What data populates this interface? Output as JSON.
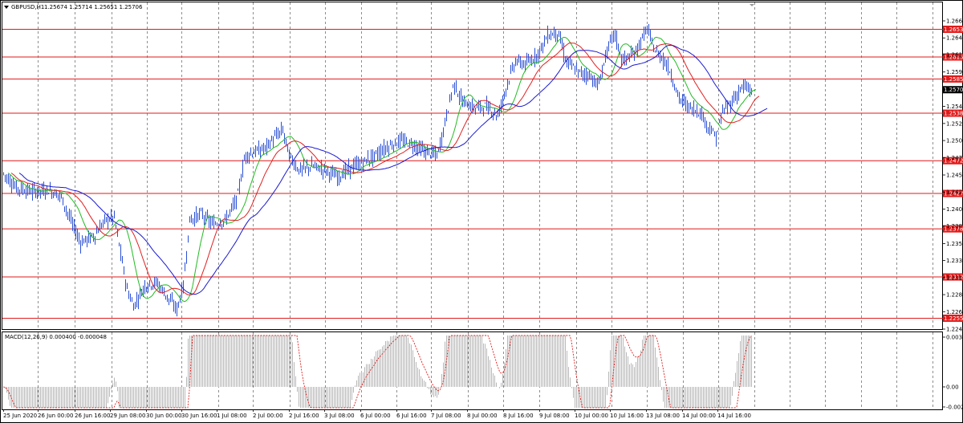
{
  "window": {
    "title": "GBPUSD,H1",
    "ohlc": "1.25674 1.25714 1.25651 1.25706",
    "menu_icon": "triangle-down-icon"
  },
  "main_axis": {
    "ticks": [
      "1.26655",
      "1.26420",
      "1.26190",
      "1.25950",
      "1.25715",
      "1.25475",
      "1.25240",
      "1.25005",
      "1.24770",
      "1.24530",
      "1.24295",
      "1.24060",
      "1.23825",
      "1.23585",
      "1.23350",
      "1.23115",
      "1.22880",
      "1.22645",
      "1.22405"
    ],
    "current_price": "1.25706"
  },
  "levels": [
    {
      "value": "1.26539"
    },
    {
      "value": "1.26157"
    },
    {
      "value": "1.25854"
    },
    {
      "value": "1.25382"
    },
    {
      "value": "1.24727"
    },
    {
      "value": "1.24275"
    },
    {
      "value": "1.23787"
    },
    {
      "value": "1.23124"
    },
    {
      "value": "1.22555"
    }
  ],
  "macd": {
    "label": "MACD(12,26,9) 0.000400 -0.000048",
    "ticks": [
      "0.003585",
      "0.00",
      "-0.00270"
    ]
  },
  "time_axis": [
    "25 Jun 2020",
    "26 Jun 00:00",
    "26 Jun 16:00",
    "29 Jun 08:00",
    "30 Jun 00:00",
    "30 Jun 16:00",
    "1 Jul 08:00",
    "2 Jul 00:00",
    "2 Jul 16:00",
    "3 Jul 08:00",
    "6 Jul 00:00",
    "6 Jul 16:00",
    "7 Jul 08:00",
    "8 Jul 00:00",
    "8 Jul 16:00",
    "9 Jul 08:00",
    "10 Jul 00:00",
    "10 Jul 16:00",
    "13 Jul 08:00",
    "14 Jul 00:00",
    "14 Jul 16:00"
  ],
  "colors": {
    "level_line": "#e11919",
    "level_tag": "#e11919",
    "candles": "#2a4fd6",
    "ma_fast": "#22bb22",
    "ma_mid": "#e02020",
    "ma_slow": "#1a1ad0",
    "macd_hist": "#b8b8b8",
    "macd_signal": "#e02020",
    "grid": "#444444"
  }
}
